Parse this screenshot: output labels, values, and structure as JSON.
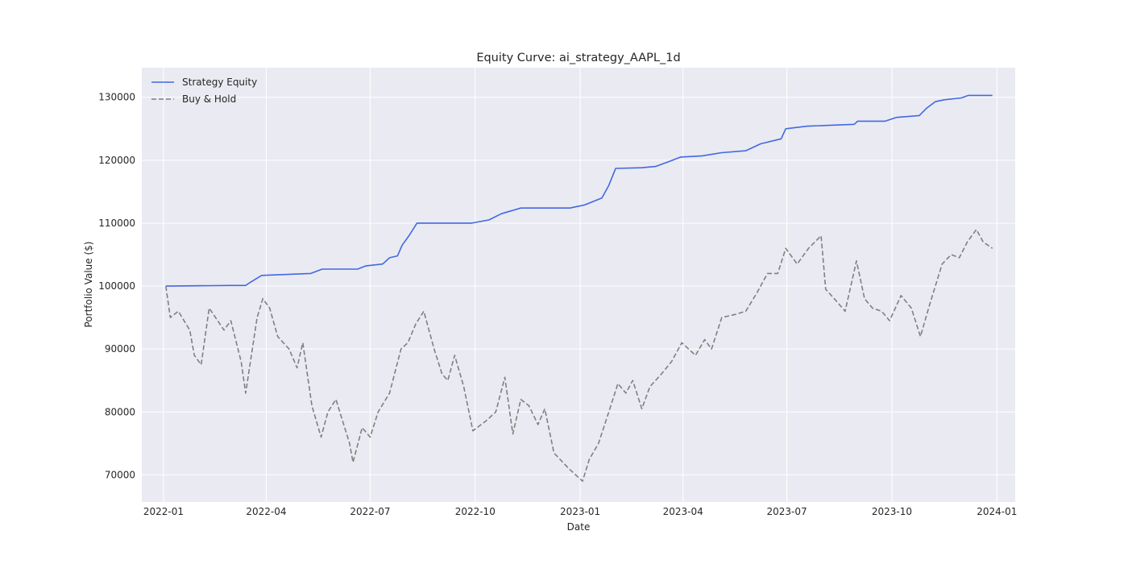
{
  "chart_data": {
    "type": "line",
    "title": "Equity Curve: ai_strategy_AAPL_1d",
    "xlabel": "Date",
    "ylabel": "Portfolio Value ($)",
    "x_ticks": [
      "2022-01",
      "2022-04",
      "2022-07",
      "2022-10",
      "2023-01",
      "2023-04",
      "2023-07",
      "2023-10",
      "2024-01"
    ],
    "y_ticks": [
      70000,
      80000,
      90000,
      100000,
      110000,
      120000,
      130000
    ],
    "xlim": [
      "2021-12-13",
      "2024-01-17"
    ],
    "ylim": [
      65700,
      134700
    ],
    "grid": true,
    "legend_position": "upper-left",
    "colors": {
      "plot_background": "#eaeaf2",
      "grid": "#ffffff"
    },
    "series": [
      {
        "name": "Strategy Equity",
        "color": "#4169e1",
        "style": "solid",
        "points": [
          [
            "2022-01-03",
            100000
          ],
          [
            "2022-02-28",
            100100
          ],
          [
            "2022-03-14",
            100100
          ],
          [
            "2022-03-18",
            100600
          ],
          [
            "2022-03-28",
            101700
          ],
          [
            "2022-05-10",
            102000
          ],
          [
            "2022-05-20",
            102700
          ],
          [
            "2022-06-20",
            102700
          ],
          [
            "2022-06-27",
            103200
          ],
          [
            "2022-07-12",
            103500
          ],
          [
            "2022-07-18",
            104500
          ],
          [
            "2022-07-25",
            104800
          ],
          [
            "2022-07-29",
            106500
          ],
          [
            "2022-08-04",
            108000
          ],
          [
            "2022-08-11",
            110000
          ],
          [
            "2022-09-28",
            110000
          ],
          [
            "2022-10-13",
            110500
          ],
          [
            "2022-10-24",
            111500
          ],
          [
            "2022-11-10",
            112400
          ],
          [
            "2022-12-23",
            112400
          ],
          [
            "2023-01-05",
            112900
          ],
          [
            "2023-01-20",
            114000
          ],
          [
            "2023-01-26",
            116000
          ],
          [
            "2023-02-01",
            118700
          ],
          [
            "2023-02-24",
            118800
          ],
          [
            "2023-03-08",
            119000
          ],
          [
            "2023-03-20",
            119800
          ],
          [
            "2023-03-30",
            120500
          ],
          [
            "2023-04-18",
            120700
          ],
          [
            "2023-05-05",
            121200
          ],
          [
            "2023-05-26",
            121500
          ],
          [
            "2023-06-08",
            122600
          ],
          [
            "2023-06-26",
            123400
          ],
          [
            "2023-06-30",
            125000
          ],
          [
            "2023-07-19",
            125400
          ],
          [
            "2023-08-29",
            125700
          ],
          [
            "2023-09-01",
            126200
          ],
          [
            "2023-09-25",
            126200
          ],
          [
            "2023-10-05",
            126800
          ],
          [
            "2023-10-25",
            127100
          ],
          [
            "2023-10-31",
            128200
          ],
          [
            "2023-11-08",
            129300
          ],
          [
            "2023-11-16",
            129600
          ],
          [
            "2023-12-01",
            129900
          ],
          [
            "2023-12-07",
            130300
          ],
          [
            "2023-12-28",
            130300
          ]
        ]
      },
      {
        "name": "Buy & Hold",
        "color": "#808080",
        "style": "dashed",
        "points": [
          [
            "2022-01-03",
            100000
          ],
          [
            "2022-01-07",
            95000
          ],
          [
            "2022-01-14",
            96000
          ],
          [
            "2022-01-24",
            93000
          ],
          [
            "2022-01-28",
            89000
          ],
          [
            "2022-02-03",
            87500
          ],
          [
            "2022-02-10",
            96500
          ],
          [
            "2022-02-23",
            93000
          ],
          [
            "2022-03-01",
            94500
          ],
          [
            "2022-03-10",
            88000
          ],
          [
            "2022-03-14",
            83000
          ],
          [
            "2022-03-24",
            95000
          ],
          [
            "2022-03-29",
            98000
          ],
          [
            "2022-04-04",
            96500
          ],
          [
            "2022-04-11",
            92000
          ],
          [
            "2022-04-21",
            90000
          ],
          [
            "2022-04-28",
            87000
          ],
          [
            "2022-05-03",
            91000
          ],
          [
            "2022-05-11",
            81000
          ],
          [
            "2022-05-19",
            76000
          ],
          [
            "2022-05-25",
            80000
          ],
          [
            "2022-06-01",
            82000
          ],
          [
            "2022-06-13",
            75000
          ],
          [
            "2022-06-16",
            72000
          ],
          [
            "2022-06-24",
            77500
          ],
          [
            "2022-07-01",
            76000
          ],
          [
            "2022-07-08",
            80000
          ],
          [
            "2022-07-18",
            83000
          ],
          [
            "2022-07-28",
            90000
          ],
          [
            "2022-08-03",
            91000
          ],
          [
            "2022-08-10",
            94000
          ],
          [
            "2022-08-17",
            96000
          ],
          [
            "2022-08-26",
            90000
          ],
          [
            "2022-09-02",
            86000
          ],
          [
            "2022-09-07",
            85000
          ],
          [
            "2022-09-13",
            89000
          ],
          [
            "2022-09-21",
            84000
          ],
          [
            "2022-09-29",
            77000
          ],
          [
            "2022-10-10",
            78500
          ],
          [
            "2022-10-19",
            80000
          ],
          [
            "2022-10-27",
            85500
          ],
          [
            "2022-11-03",
            76500
          ],
          [
            "2022-11-10",
            82000
          ],
          [
            "2022-11-17",
            81000
          ],
          [
            "2022-11-25",
            78000
          ],
          [
            "2022-12-01",
            80500
          ],
          [
            "2022-12-09",
            73500
          ],
          [
            "2022-12-22",
            71000
          ],
          [
            "2023-01-03",
            69000
          ],
          [
            "2023-01-09",
            72500
          ],
          [
            "2023-01-17",
            75000
          ],
          [
            "2023-01-26",
            80000
          ],
          [
            "2023-02-03",
            84500
          ],
          [
            "2023-02-10",
            83000
          ],
          [
            "2023-02-16",
            85000
          ],
          [
            "2023-02-24",
            80500
          ],
          [
            "2023-03-03",
            84000
          ],
          [
            "2023-03-13",
            86000
          ],
          [
            "2023-03-22",
            88000
          ],
          [
            "2023-03-31",
            91000
          ],
          [
            "2023-04-12",
            89000
          ],
          [
            "2023-04-20",
            91500
          ],
          [
            "2023-04-26",
            90000
          ],
          [
            "2023-05-05",
            95000
          ],
          [
            "2023-05-17",
            95500
          ],
          [
            "2023-05-26",
            96000
          ],
          [
            "2023-06-05",
            99000
          ],
          [
            "2023-06-14",
            102000
          ],
          [
            "2023-06-23",
            102000
          ],
          [
            "2023-06-30",
            106000
          ],
          [
            "2023-07-10",
            103500
          ],
          [
            "2023-07-20",
            106000
          ],
          [
            "2023-07-31",
            108000
          ],
          [
            "2023-08-04",
            99500
          ],
          [
            "2023-08-14",
            97500
          ],
          [
            "2023-08-21",
            96000
          ],
          [
            "2023-08-31",
            104000
          ],
          [
            "2023-09-07",
            98000
          ],
          [
            "2023-09-14",
            96500
          ],
          [
            "2023-09-22",
            96000
          ],
          [
            "2023-09-29",
            94500
          ],
          [
            "2023-10-09",
            98500
          ],
          [
            "2023-10-18",
            96500
          ],
          [
            "2023-10-26",
            92000
          ],
          [
            "2023-11-03",
            97000
          ],
          [
            "2023-11-14",
            103500
          ],
          [
            "2023-11-22",
            105000
          ],
          [
            "2023-11-29",
            104500
          ],
          [
            "2023-12-06",
            107000
          ],
          [
            "2023-12-14",
            109000
          ],
          [
            "2023-12-20",
            107000
          ],
          [
            "2023-12-28",
            106000
          ]
        ]
      }
    ]
  }
}
